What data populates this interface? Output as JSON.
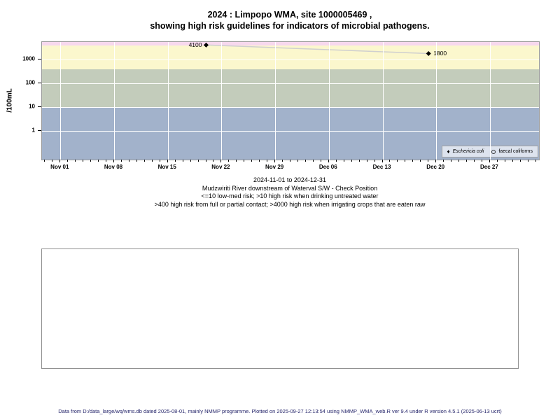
{
  "title": {
    "line1": "2024 : Limpopo WMA, site 1000005469 ,",
    "line2": "showing high risk guidelines for indicators of microbial pathogens."
  },
  "chart_data": {
    "type": "scatter",
    "title": "2024 : Limpopo WMA, site 1000005469 , showing high risk guidelines for indicators of microbial pathogens.",
    "ylabel": "/100mL",
    "y_scale": "log10",
    "y_ticks": [
      1,
      10,
      100,
      1000
    ],
    "y_domain_log10": [
      -1.2,
      3.74
    ],
    "x_domain_days_from_nov01": [
      -2.4,
      62.4
    ],
    "x_ticks": [
      {
        "day": 0,
        "label": "Nov 01"
      },
      {
        "day": 7,
        "label": "Nov 08"
      },
      {
        "day": 14,
        "label": "Nov 15"
      },
      {
        "day": 21,
        "label": "Nov 22"
      },
      {
        "day": 28,
        "label": "Nov 29"
      },
      {
        "day": 35,
        "label": "Dec 06"
      },
      {
        "day": 42,
        "label": "Dec 13"
      },
      {
        "day": 49,
        "label": "Dec 20"
      },
      {
        "day": 56,
        "label": "Dec 27"
      }
    ],
    "x_minor_ticks": {
      "from": -2,
      "to": 62,
      "step": 1
    },
    "risk_bands": [
      {
        "meaning": "<=10 low-med risk",
        "from": 0.06,
        "to": 10,
        "color": "#a2b2cb"
      },
      {
        "meaning": ">10 high risk when drinking untreated water",
        "from": 10,
        "to": 400,
        "color": "#c3ccbb"
      },
      {
        "meaning": ">400 high risk from full or partial contact",
        "from": 400,
        "to": 4000,
        "color": "#fbf7cd"
      },
      {
        "meaning": ">4000 high risk when irrigating crops eaten raw",
        "from": 4000,
        "to": 5500,
        "color": "#f7d8ee"
      }
    ],
    "series": [
      {
        "name": "Eschericia coli",
        "marker": "filled-diamond",
        "line_color": "#cfcfcf",
        "points": [
          {
            "day": 19,
            "date_approx": "2024-11-20",
            "value": 4100,
            "label": "4100",
            "label_side": "left"
          },
          {
            "day": 48,
            "date_approx": "2024-12-19",
            "value": 1800,
            "label": "1800",
            "label_side": "right"
          }
        ]
      },
      {
        "name": "faecal coliforms",
        "marker": "open-circle",
        "line_color": "#cfcfcf",
        "points": []
      }
    ],
    "legend": {
      "position": "bottom-right",
      "entries": [
        {
          "marker": "filled-diamond",
          "label": "Eschericia coli",
          "italic": true
        },
        {
          "marker": "open-circle",
          "label": "faecal coliforms",
          "italic": false
        }
      ]
    },
    "grid": {
      "color": "#ffffff",
      "vertical_every_days": 7,
      "horizontal_at": [
        1,
        10,
        100,
        1000
      ]
    }
  },
  "subtitle": {
    "lines": [
      "2024-11-01 to 2024-12-31",
      "Mudzwiriti River downstream of Waterval S/W - Check Position",
      "<=10 low-med risk; >10 high risk when drinking untreated water",
      ">400 high risk from full or partial contact; >4000 high risk when irrigating crops that are eaten raw"
    ]
  },
  "footer": {
    "text": "Data from D:/data_large/wq/wms.db dated 2025-08-01, mainly NMMP programme. Plotted on 2025-09-27 12:13:54 using NMMP_WMA_web.R ver 9.4 under R version 4.5.1 (2025-06-13 ucrt)"
  },
  "colors": {
    "band_blue": "#a2b2cb",
    "band_green": "#c3ccbb",
    "band_yellow": "#fbf7cd",
    "band_pink": "#f7d8ee",
    "legend_bg": "#dde3ee",
    "series_line": "#cfcfcf",
    "marker": "#000000",
    "footer_text": "#26266b"
  }
}
